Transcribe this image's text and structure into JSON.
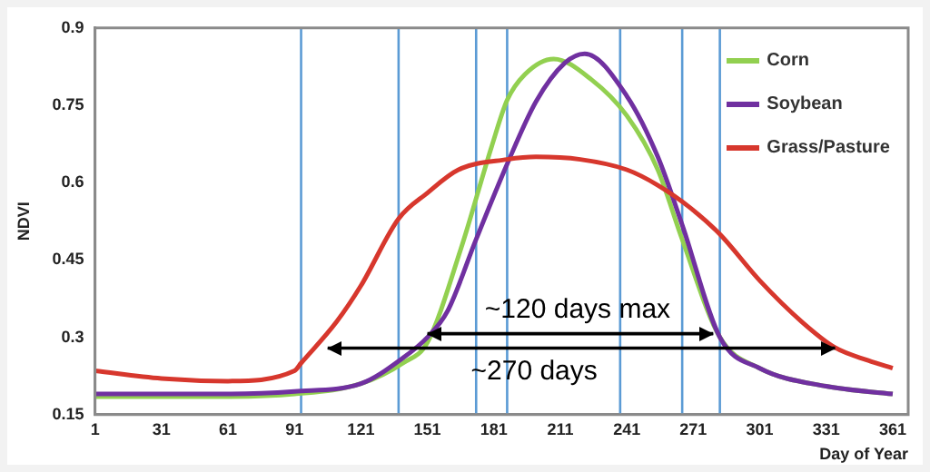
{
  "chart_data": {
    "type": "line",
    "xlabel": "Day of Year",
    "ylabel": "NDVI",
    "xlim": [
      1,
      368
    ],
    "xticks": [
      1,
      31,
      61,
      91,
      121,
      151,
      181,
      211,
      241,
      271,
      301,
      331,
      361
    ],
    "ylim": [
      0.15,
      0.9
    ],
    "yticks": [
      0.15,
      0.3,
      0.45,
      0.6,
      0.75,
      0.9
    ],
    "grid": false,
    "legend": "top right",
    "marker": "none",
    "line_style": "solid",
    "series": [
      {
        "name": "Corn",
        "color": "#92d050",
        "x": [
          1,
          31,
          61,
          91,
          121,
          140,
          151,
          166,
          180,
          187,
          195,
          208,
          225,
          241,
          255,
          266,
          283,
          301,
          331,
          361
        ],
        "values": [
          0.185,
          0.185,
          0.185,
          0.19,
          0.21,
          0.25,
          0.29,
          0.47,
          0.67,
          0.76,
          0.81,
          0.84,
          0.8,
          0.73,
          0.625,
          0.49,
          0.3,
          0.24,
          0.205,
          0.19
        ]
      },
      {
        "name": "Soybean",
        "color": "#7030a0",
        "x": [
          1,
          31,
          61,
          91,
          121,
          140,
          151,
          160,
          173,
          187,
          200,
          213,
          222,
          241,
          255,
          266,
          283,
          301,
          331,
          361
        ],
        "values": [
          0.19,
          0.19,
          0.19,
          0.195,
          0.21,
          0.26,
          0.3,
          0.35,
          0.49,
          0.636,
          0.757,
          0.832,
          0.85,
          0.768,
          0.65,
          0.518,
          0.3,
          0.24,
          0.205,
          0.19
        ]
      },
      {
        "name": "Grass/Pasture",
        "color": "#d7372d",
        "x": [
          1,
          31,
          61,
          91,
          94,
          110,
          121,
          138,
          151,
          165,
          187,
          200,
          220,
          241,
          255,
          270,
          283,
          301,
          320,
          335,
          350,
          361
        ],
        "values": [
          0.235,
          0.22,
          0.215,
          0.235,
          0.25,
          0.33,
          0.4,
          0.53,
          0.58,
          0.625,
          0.645,
          0.65,
          0.645,
          0.625,
          0.595,
          0.55,
          0.5,
          0.41,
          0.33,
          0.28,
          0.255,
          0.24
        ]
      },
      {
        "type": "line",
        "color": "#000000",
        "x": [
          151,
          280
        ],
        "values": [
          0.307,
          0.307
        ]
      },
      {
        "type": "line",
        "color": "#000000",
        "x": [
          106,
          335
        ],
        "values": [
          0.279,
          0.279
        ]
      }
    ],
    "ref_lines": [
      {
        "axis": "x",
        "value": 94,
        "color": "#5b9bd5"
      },
      {
        "axis": "x",
        "value": 138,
        "color": "#5b9bd5"
      },
      {
        "axis": "x",
        "value": 173,
        "color": "#5b9bd5"
      },
      {
        "axis": "x",
        "value": 187,
        "color": "#5b9bd5"
      },
      {
        "axis": "x",
        "value": 238,
        "color": "#5b9bd5"
      },
      {
        "axis": "x",
        "value": 266,
        "color": "#5b9bd5"
      },
      {
        "axis": "x",
        "value": 283,
        "color": "#5b9bd5"
      }
    ],
    "annotations": [
      "~120 days max",
      "~270 days"
    ]
  }
}
